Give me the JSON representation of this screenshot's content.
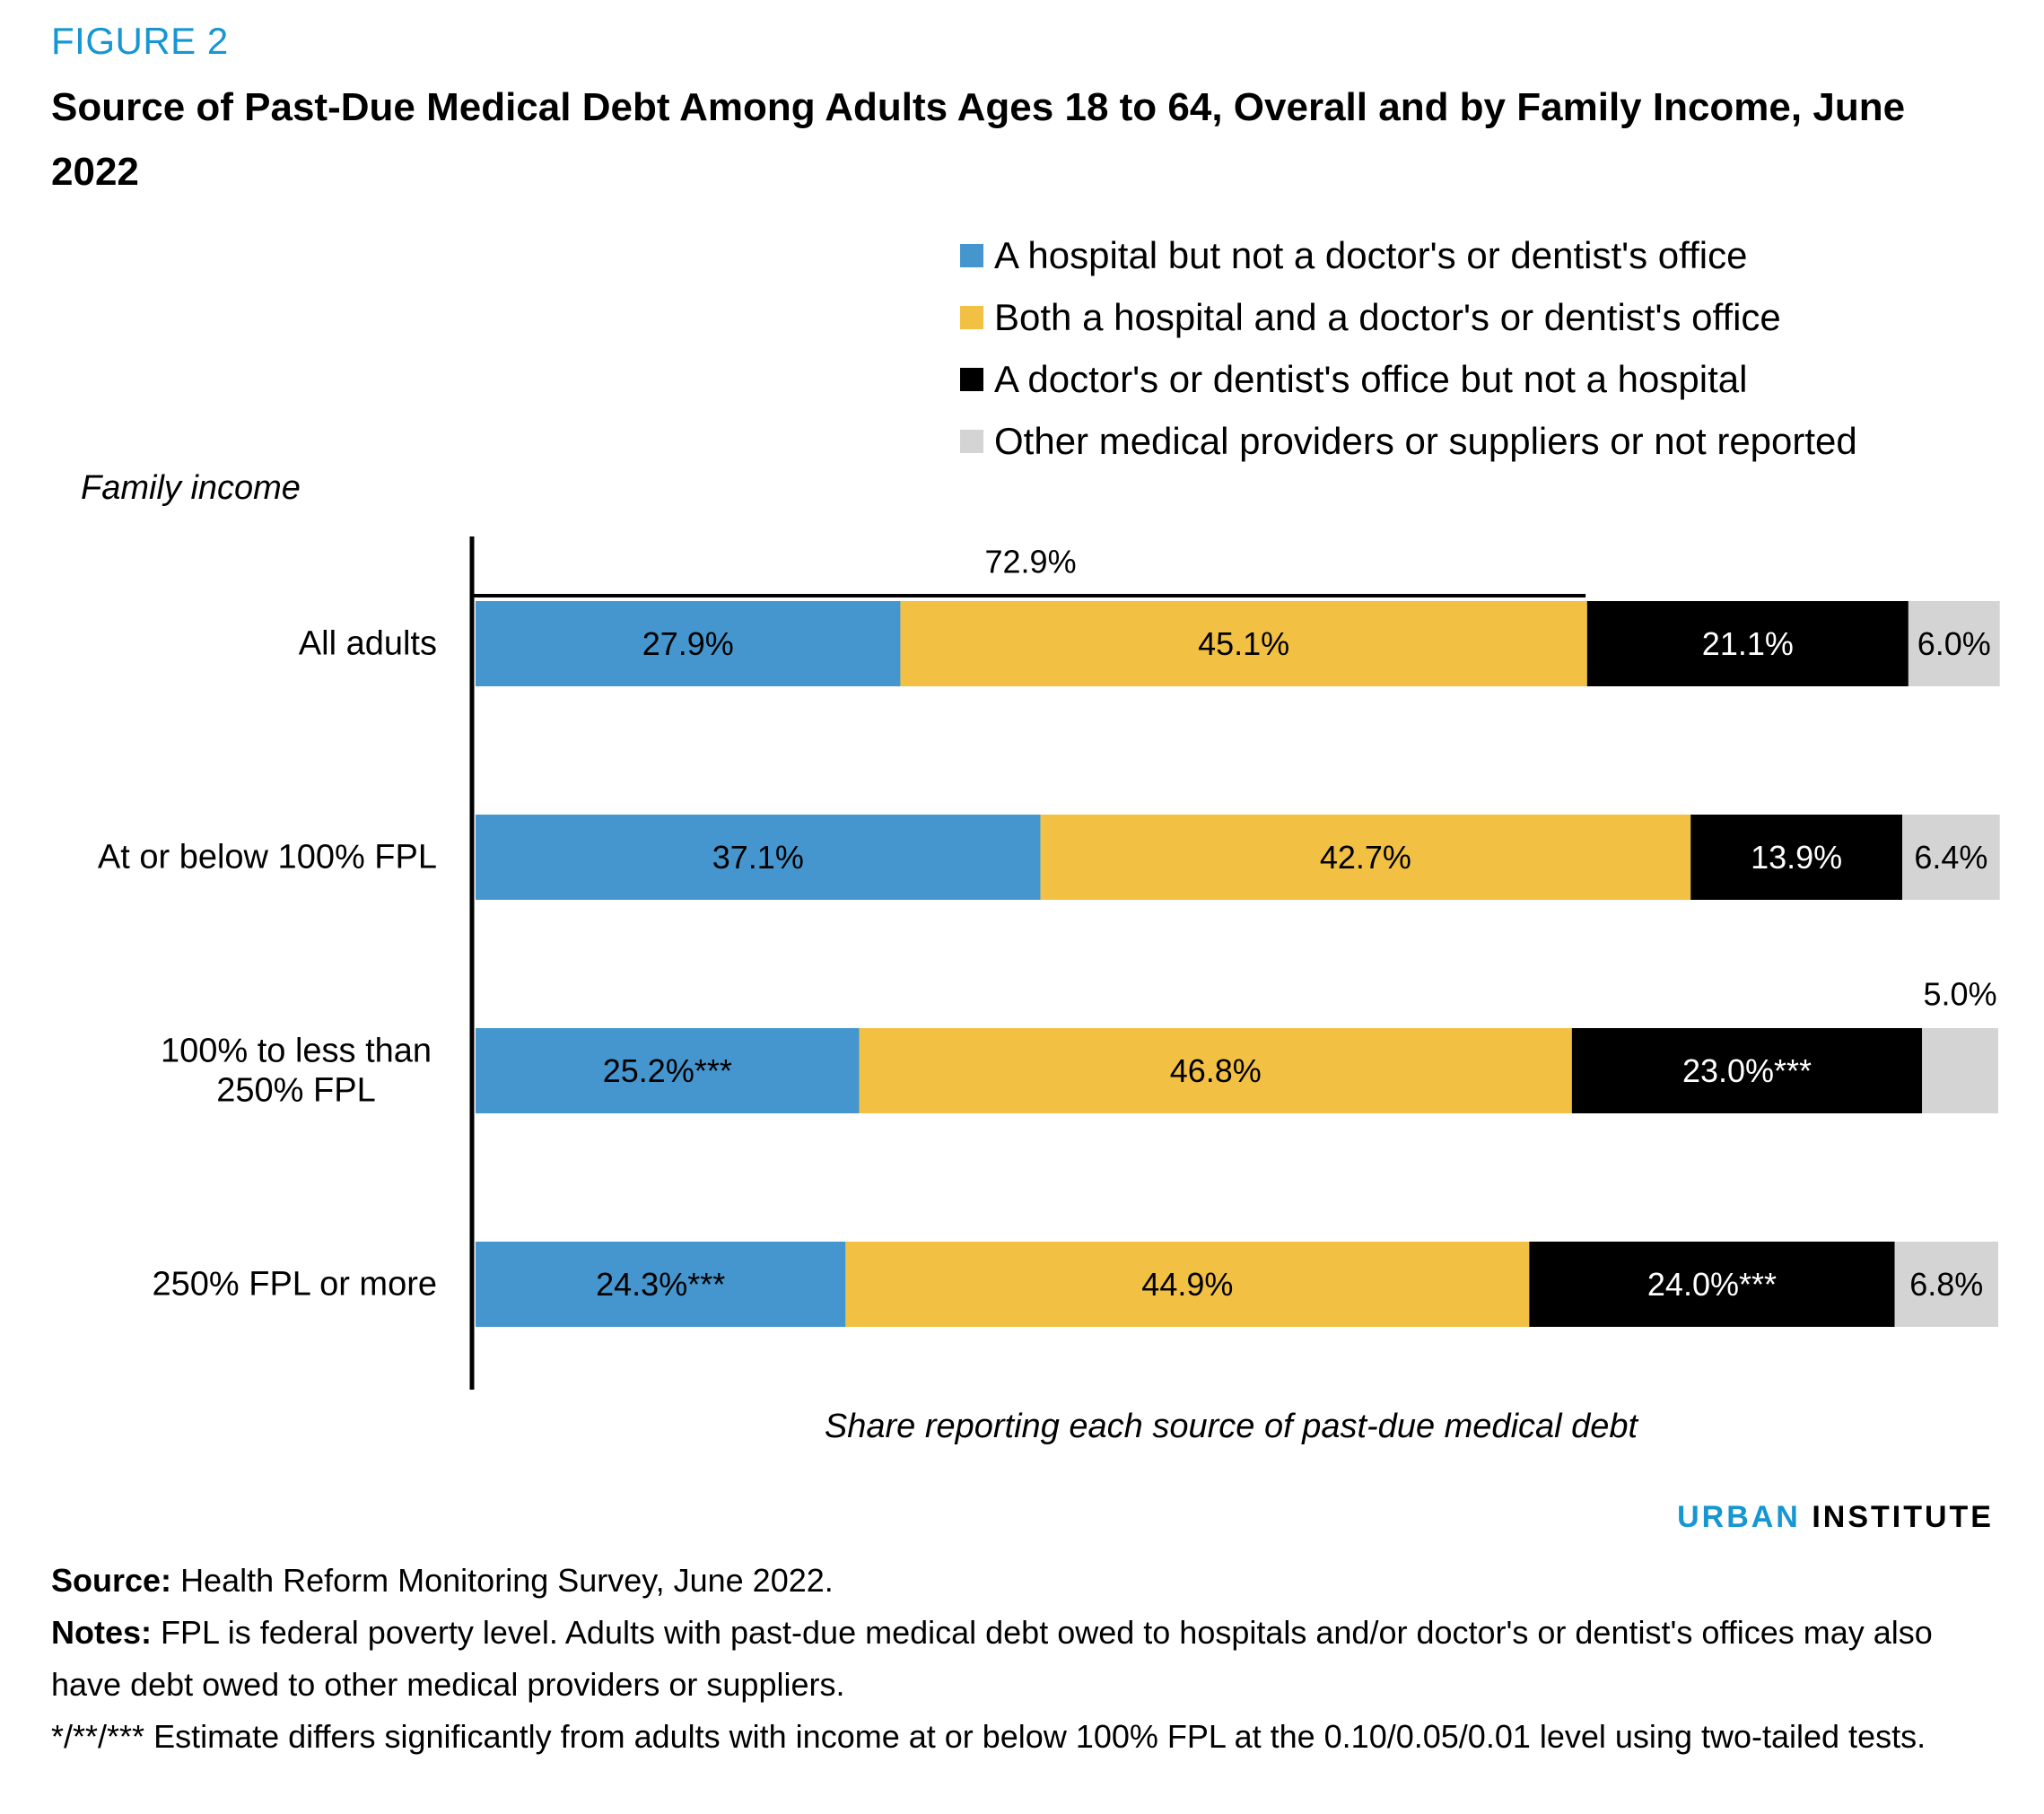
{
  "header": {
    "figure_label": "FIGURE 2",
    "title": "Source of Past-Due Medical Debt Among Adults Ages 18 to 64, Overall and by Family Income, June 2022"
  },
  "chart_data": {
    "type": "bar",
    "orientation": "horizontal",
    "stacked": true,
    "ylabel": "Family income",
    "xlabel": "Share reporting each source of past-due medical debt",
    "xlim": [
      0,
      100
    ],
    "legend_position": "top-right",
    "categories": [
      [
        "All adults"
      ],
      [
        "At or below 100% FPL"
      ],
      [
        "100% to less than",
        "250% FPL"
      ],
      [
        "250% FPL or more"
      ]
    ],
    "series": [
      {
        "name": "A hospital but not a doctor's or dentist's office",
        "color": "#4596cf",
        "label_color": "#000000",
        "values": [
          27.9,
          37.1,
          25.2,
          24.3
        ],
        "labels": [
          "27.9%",
          "37.1%",
          "25.2%***",
          "24.3%***"
        ]
      },
      {
        "name": "Both a hospital and a doctor's or dentist's office",
        "color": "#f2c143",
        "label_color": "#000000",
        "values": [
          45.1,
          42.7,
          46.8,
          44.9
        ],
        "labels": [
          "45.1%",
          "42.7%",
          "46.8%",
          "44.9%"
        ]
      },
      {
        "name": "A doctor's or dentist's office but not a hospital",
        "color": "#000000",
        "label_color": "#ffffff",
        "values": [
          21.1,
          13.9,
          23.0,
          24.0
        ],
        "labels": [
          "21.1%",
          "13.9%",
          "23.0%***",
          "24.0%***"
        ]
      },
      {
        "name": "Other medical providers or suppliers or not reported",
        "color": "#d4d4d4",
        "label_color": "#000000",
        "values": [
          6.0,
          6.4,
          5.0,
          6.8
        ],
        "labels": [
          "6.0%",
          "6.4%",
          "5.0%",
          "6.8%"
        ]
      }
    ],
    "annotations": [
      {
        "text": "72.9%",
        "row": 0,
        "from": 0,
        "to": 72.9
      }
    ]
  },
  "footer": {
    "brand_urban": "URBAN",
    "brand_institute": "INSTITUTE",
    "source_label": "Source:",
    "source_text": "Health Reform Monitoring Survey, June 2022.",
    "notes_label": "Notes:",
    "notes_text": "FPL is federal poverty level. Adults with past-due medical debt owed to hospitals and/or doctor's or dentist's offices may also have debt owed to other medical providers or suppliers.",
    "significance_text": "*/**/*** Estimate differs significantly from adults with income at or below 100% FPL at the 0.10/0.05/0.01 level using two-tailed tests."
  }
}
